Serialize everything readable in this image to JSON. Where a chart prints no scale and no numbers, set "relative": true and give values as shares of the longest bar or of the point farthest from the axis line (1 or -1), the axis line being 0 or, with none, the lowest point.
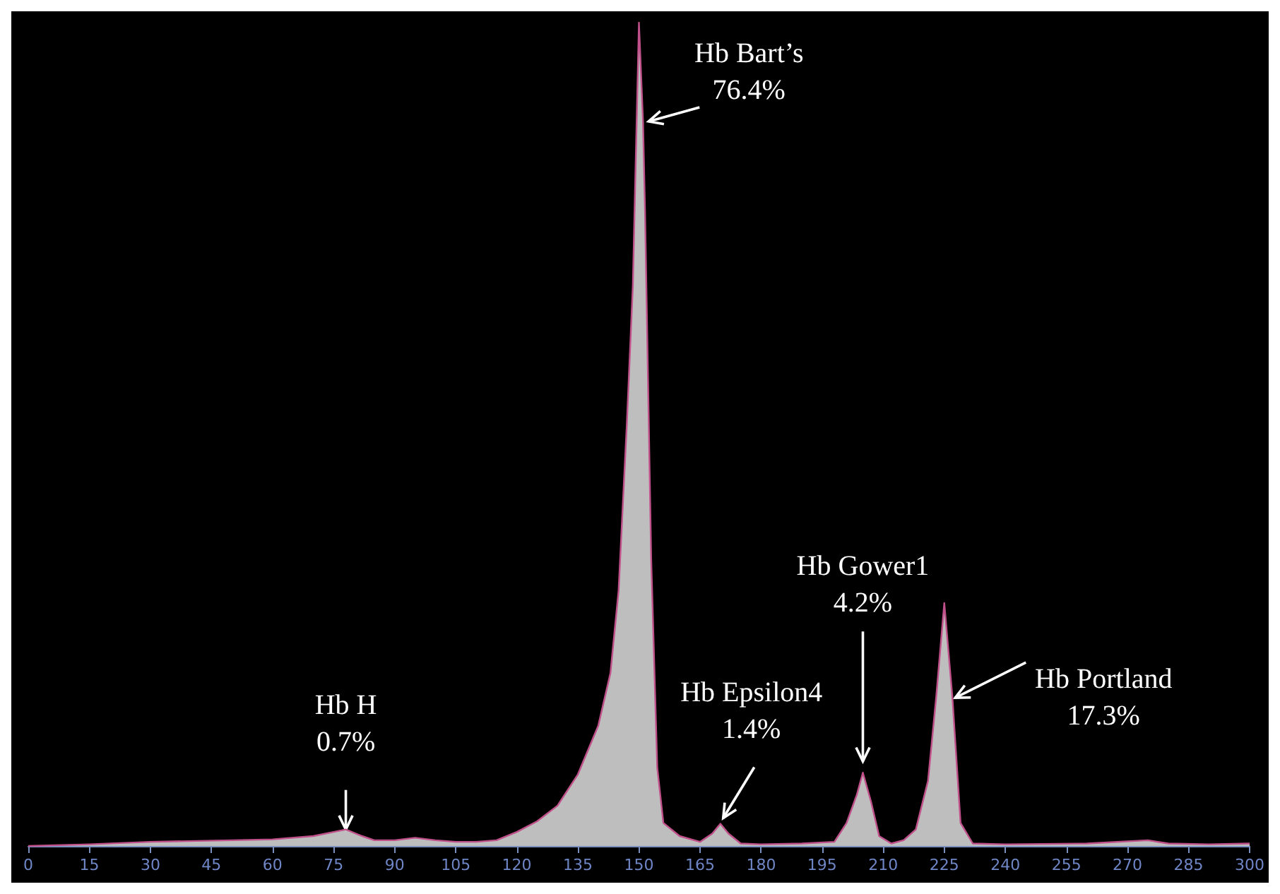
{
  "chart_data": {
    "type": "area",
    "relative": true,
    "color": "#c0508a",
    "x": [
      0,
      15,
      30,
      50,
      60,
      70,
      75,
      78,
      82,
      85,
      90,
      95,
      100,
      105,
      110,
      115,
      120,
      125,
      130,
      135,
      140,
      143,
      145,
      147,
      148.5,
      150,
      151,
      151.5,
      153,
      154.5,
      156,
      160,
      165,
      168,
      170,
      172,
      175,
      180,
      190,
      198,
      201,
      203.5,
      205,
      207,
      209,
      212,
      215,
      218,
      221,
      223,
      225,
      227,
      229,
      232,
      240,
      260,
      275,
      280,
      290,
      300
    ],
    "values": [
      0,
      0.002,
      0.005,
      0.007,
      0.008,
      0.012,
      0.017,
      0.02,
      0.012,
      0.007,
      0.007,
      0.01,
      0.007,
      0.005,
      0.005,
      0.007,
      0.017,
      0.03,
      0.049,
      0.087,
      0.146,
      0.21,
      0.31,
      0.51,
      0.68,
      1.0,
      0.88,
      0.77,
      0.35,
      0.095,
      0.028,
      0.012,
      0.005,
      0.015,
      0.027,
      0.015,
      0.003,
      0.002,
      0.003,
      0.005,
      0.028,
      0.062,
      0.089,
      0.054,
      0.012,
      0.003,
      0.007,
      0.02,
      0.079,
      0.18,
      0.295,
      0.18,
      0.028,
      0.003,
      0.002,
      0.003,
      0.007,
      0.003,
      0.002,
      0.003
    ],
    "xlim": [
      0,
      300
    ],
    "xticks": [
      0,
      15,
      30,
      45,
      60,
      75,
      90,
      105,
      120,
      135,
      150,
      165,
      180,
      195,
      210,
      225,
      240,
      255,
      270,
      285,
      300
    ],
    "tick_labels": "x",
    "grid": false,
    "annotations": [
      {
        "text": "Hb H\n0.7%",
        "x": 78,
        "y": 0.02
      },
      {
        "text": "Hb Bart’s\n76.4%",
        "x": 151,
        "y": 0.88
      },
      {
        "text": "Hb Epsilon4\n1.4%",
        "x": 170,
        "y": 0.027
      },
      {
        "text": "Hb Gower1\n4.2%",
        "x": 205,
        "y": 0.089
      },
      {
        "text": "Hb Portland\n17.3%",
        "x": 227,
        "y": 0.18
      }
    ]
  }
}
